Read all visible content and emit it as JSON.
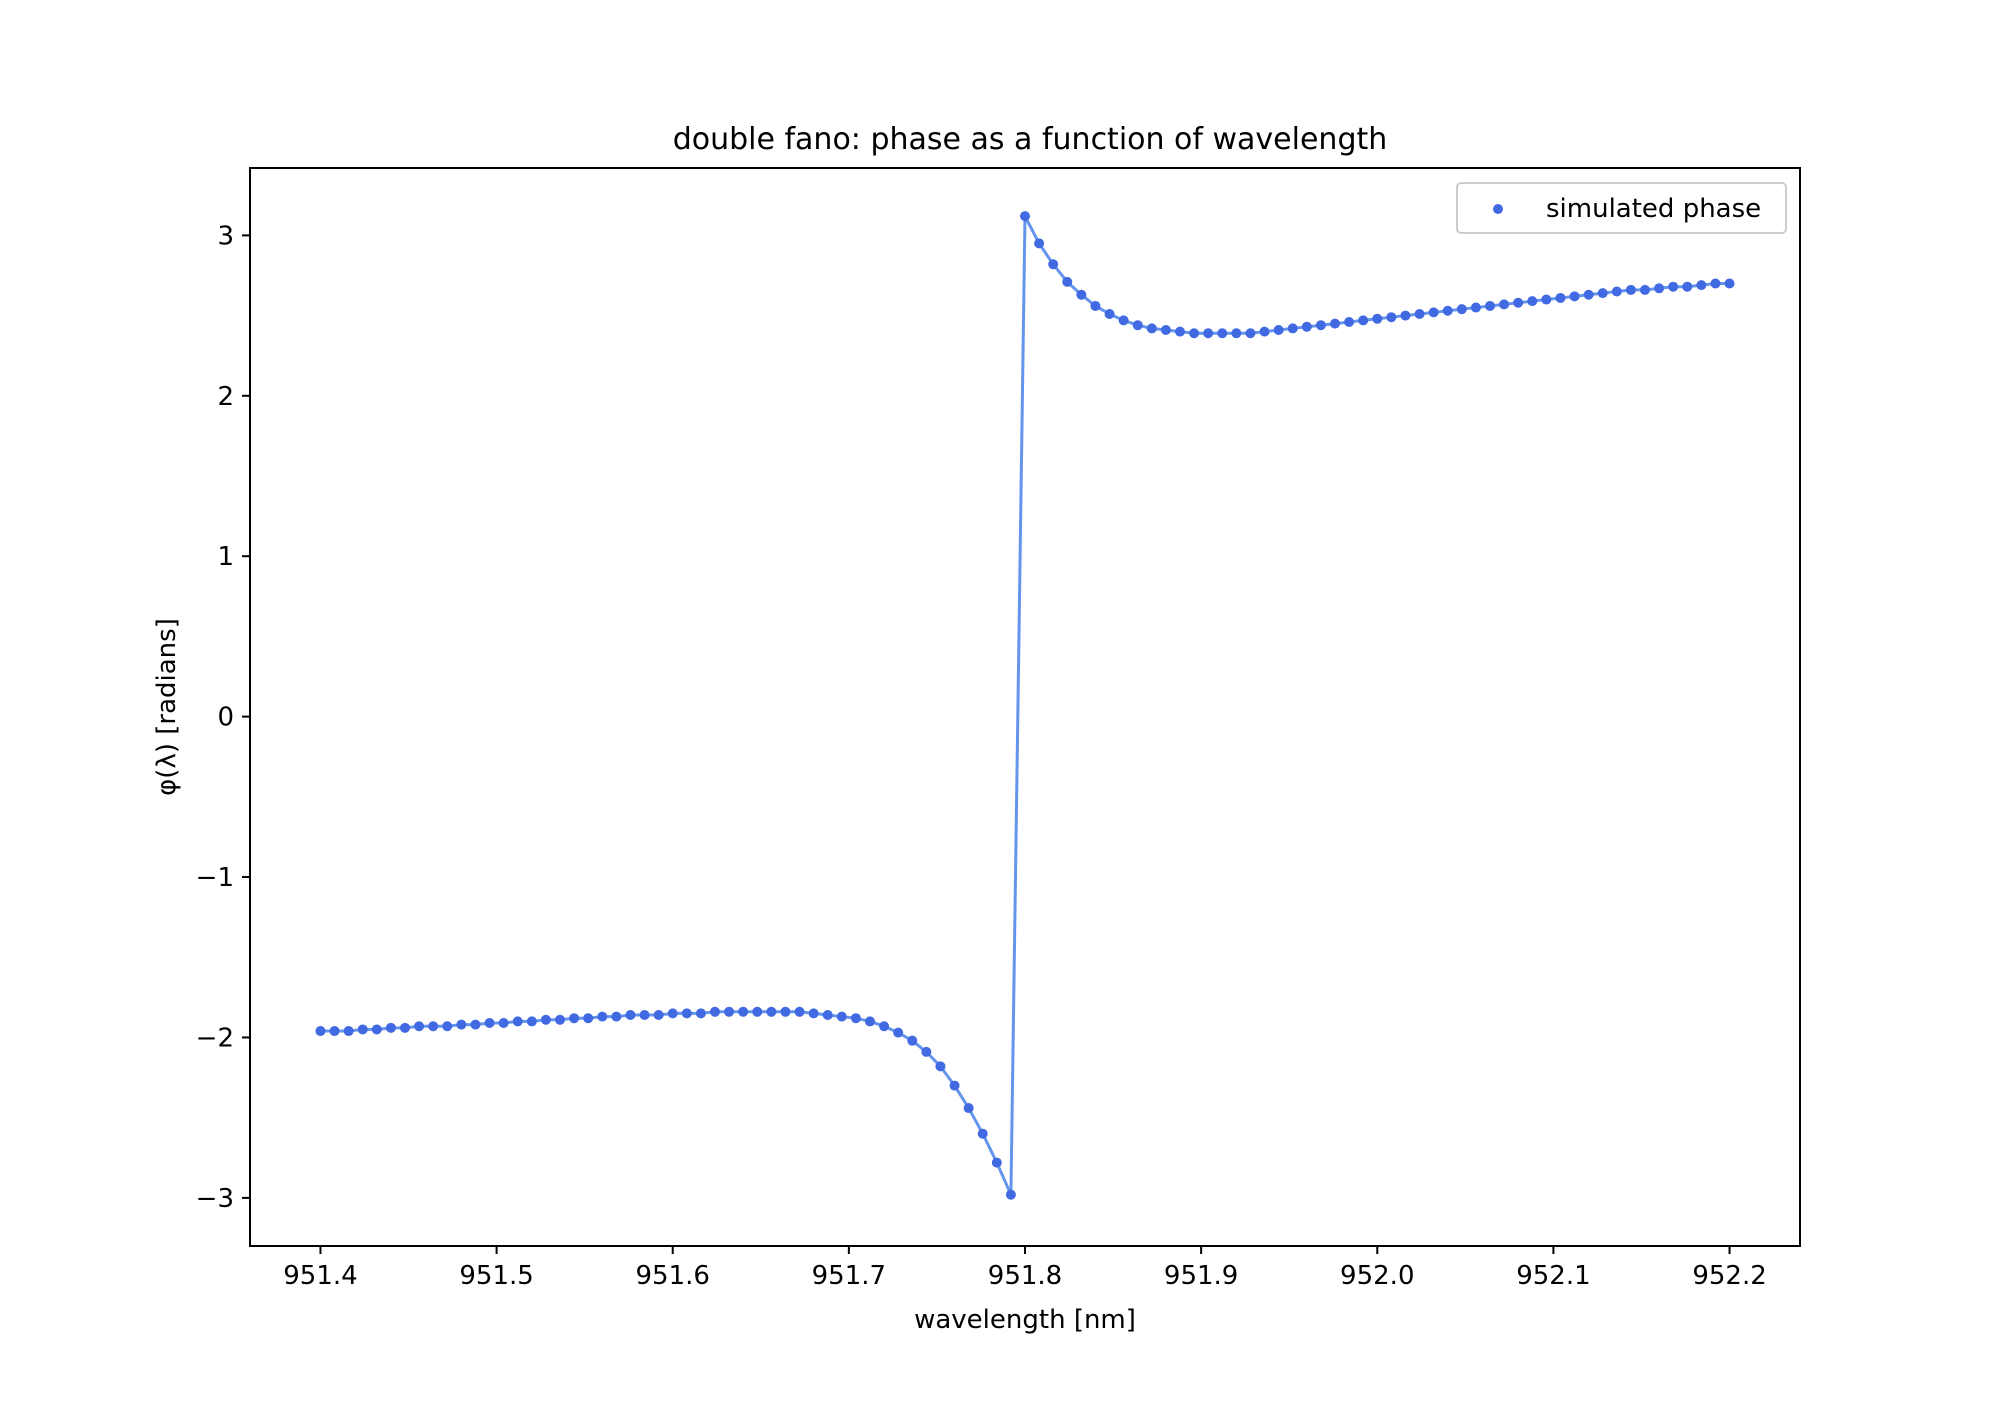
{
  "chart_data": {
    "type": "scatter",
    "title": "double fano: phase as a function of wavelength",
    "xlabel": "wavelength [nm]",
    "ylabel": "φ(λ) [radians]",
    "xlim": [
      951.36,
      952.24
    ],
    "ylim": [
      -3.3,
      3.42
    ],
    "xticks": [
      951.4,
      951.5,
      951.6,
      951.7,
      951.8,
      951.9,
      952.0,
      952.1,
      952.2
    ],
    "xtick_labels": [
      "951.4",
      "951.5",
      "951.6",
      "951.7",
      "951.8",
      "951.9",
      "952.0",
      "952.1",
      "952.2"
    ],
    "yticks": [
      -3,
      -2,
      -1,
      0,
      1,
      2,
      3
    ],
    "ytick_labels": [
      "−3",
      "−2",
      "−1",
      "0",
      "1",
      "2",
      "3"
    ],
    "grid": false,
    "legend_position": "top-right",
    "series": [
      {
        "name": "simulated phase",
        "marker_color": "#4169e1",
        "line_color": "#6495ed",
        "x": [
          951.4,
          951.408,
          951.416,
          951.424,
          951.432,
          951.44,
          951.448,
          951.456,
          951.464,
          951.472,
          951.48,
          951.488,
          951.496,
          951.504,
          951.512,
          951.52,
          951.528,
          951.536,
          951.544,
          951.552,
          951.56,
          951.568,
          951.576,
          951.584,
          951.592,
          951.6,
          951.608,
          951.616,
          951.624,
          951.632,
          951.64,
          951.648,
          951.656,
          951.664,
          951.672,
          951.68,
          951.688,
          951.696,
          951.704,
          951.712,
          951.72,
          951.728,
          951.736,
          951.744,
          951.752,
          951.76,
          951.768,
          951.776,
          951.784,
          951.792,
          951.8,
          951.808,
          951.816,
          951.824,
          951.832,
          951.84,
          951.848,
          951.856,
          951.864,
          951.872,
          951.88,
          951.888,
          951.896,
          951.904,
          951.912,
          951.92,
          951.928,
          951.936,
          951.944,
          951.952,
          951.96,
          951.968,
          951.976,
          951.984,
          951.992,
          952.0,
          952.008,
          952.016,
          952.024,
          952.032,
          952.04,
          952.048,
          952.056,
          952.064,
          952.072,
          952.08,
          952.088,
          952.096,
          952.104,
          952.112,
          952.12,
          952.128,
          952.136,
          952.144,
          952.152,
          952.16,
          952.168,
          952.176,
          952.184,
          952.192,
          952.2
        ],
        "y": [
          -1.96,
          -1.96,
          -1.96,
          -1.95,
          -1.95,
          -1.94,
          -1.94,
          -1.93,
          -1.93,
          -1.93,
          -1.92,
          -1.92,
          -1.91,
          -1.91,
          -1.9,
          -1.9,
          -1.89,
          -1.89,
          -1.88,
          -1.88,
          -1.87,
          -1.87,
          -1.86,
          -1.86,
          -1.86,
          -1.85,
          -1.85,
          -1.85,
          -1.84,
          -1.84,
          -1.84,
          -1.84,
          -1.84,
          -1.84,
          -1.84,
          -1.85,
          -1.86,
          -1.87,
          -1.88,
          -1.9,
          -1.93,
          -1.97,
          -2.02,
          -2.09,
          -2.18,
          -2.3,
          -2.44,
          -2.6,
          -2.78,
          -2.98,
          3.12,
          2.95,
          2.82,
          2.71,
          2.63,
          2.56,
          2.51,
          2.47,
          2.44,
          2.42,
          2.41,
          2.4,
          2.39,
          2.39,
          2.39,
          2.39,
          2.39,
          2.4,
          2.41,
          2.42,
          2.43,
          2.44,
          2.45,
          2.46,
          2.47,
          2.48,
          2.49,
          2.5,
          2.51,
          2.52,
          2.53,
          2.54,
          2.55,
          2.56,
          2.57,
          2.58,
          2.59,
          2.6,
          2.61,
          2.62,
          2.63,
          2.64,
          2.65,
          2.66,
          2.66,
          2.67,
          2.68,
          2.68,
          2.69,
          2.7,
          2.7
        ]
      }
    ]
  }
}
